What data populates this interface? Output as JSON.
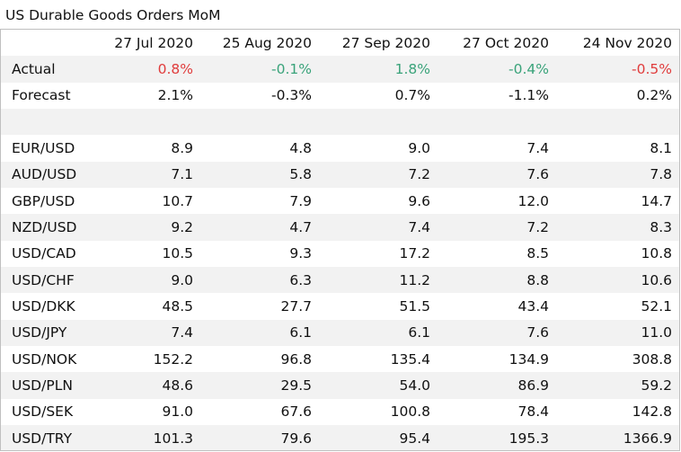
{
  "title": "US Durable Goods Orders MoM",
  "columns": [
    "",
    "27 Jul 2020",
    "25 Aug 2020",
    "27 Sep 2020",
    "27 Oct 2020",
    "24 Nov 2020"
  ],
  "colors": {
    "negative": "#e03c3c",
    "positive": "#3aa37a",
    "stripe": "#f2f2f2"
  },
  "rows": [
    {
      "label": "Actual",
      "values": [
        "0.8%",
        "-0.1%",
        "1.8%",
        "-0.4%",
        "-0.5%"
      ],
      "colors": [
        "red",
        "green",
        "green",
        "green",
        "red"
      ]
    },
    {
      "label": "Forecast",
      "values": [
        "2.1%",
        "-0.3%",
        "0.7%",
        "-1.1%",
        "0.2%"
      ]
    },
    {
      "label": "",
      "values": [
        "",
        "",
        "",
        "",
        ""
      ]
    },
    {
      "label": "EUR/USD",
      "values": [
        "8.9",
        "4.8",
        "9.0",
        "7.4",
        "8.1"
      ]
    },
    {
      "label": "AUD/USD",
      "values": [
        "7.1",
        "5.8",
        "7.2",
        "7.6",
        "7.8"
      ]
    },
    {
      "label": "GBP/USD",
      "values": [
        "10.7",
        "7.9",
        "9.6",
        "12.0",
        "14.7"
      ]
    },
    {
      "label": "NZD/USD",
      "values": [
        "9.2",
        "4.7",
        "7.4",
        "7.2",
        "8.3"
      ]
    },
    {
      "label": "USD/CAD",
      "values": [
        "10.5",
        "9.3",
        "17.2",
        "8.5",
        "10.8"
      ]
    },
    {
      "label": "USD/CHF",
      "values": [
        "9.0",
        "6.3",
        "11.2",
        "8.8",
        "10.6"
      ]
    },
    {
      "label": "USD/DKK",
      "values": [
        "48.5",
        "27.7",
        "51.5",
        "43.4",
        "52.1"
      ]
    },
    {
      "label": "USD/JPY",
      "values": [
        "7.4",
        "6.1",
        "6.1",
        "7.6",
        "11.0"
      ]
    },
    {
      "label": "USD/NOK",
      "values": [
        "152.2",
        "96.8",
        "135.4",
        "134.9",
        "308.8"
      ]
    },
    {
      "label": "USD/PLN",
      "values": [
        "48.6",
        "29.5",
        "54.0",
        "86.9",
        "59.2"
      ]
    },
    {
      "label": "USD/SEK",
      "values": [
        "91.0",
        "67.6",
        "100.8",
        "78.4",
        "142.8"
      ]
    },
    {
      "label": "USD/TRY",
      "values": [
        "101.3",
        "79.6",
        "95.4",
        "195.3",
        "1366.9"
      ]
    }
  ]
}
